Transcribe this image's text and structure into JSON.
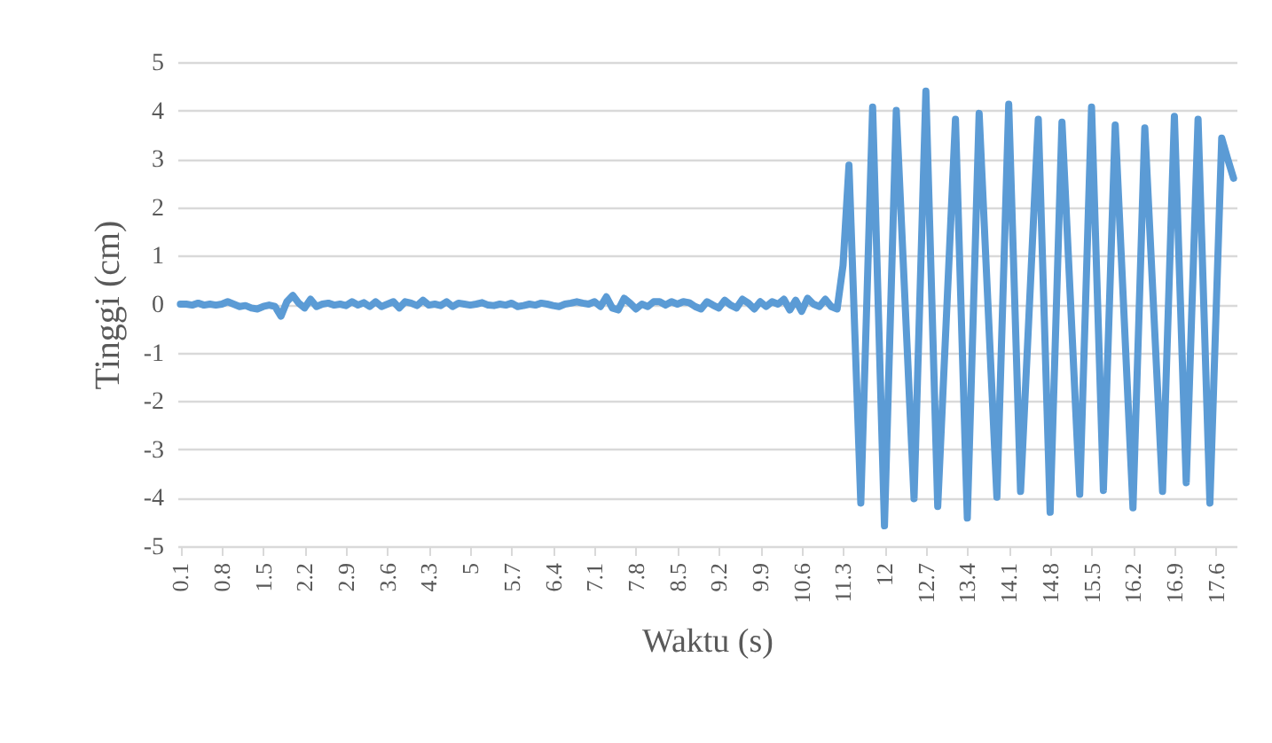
{
  "chart_data": {
    "type": "line",
    "xlabel": "Waktu (s)",
    "ylabel": "Tinggi (cm)",
    "categories": [
      "0.1",
      null,
      null,
      null,
      null,
      null,
      null,
      "0.8",
      null,
      null,
      null,
      null,
      null,
      null,
      "1.5",
      null,
      null,
      null,
      null,
      null,
      null,
      "2.2",
      null,
      null,
      null,
      null,
      null,
      null,
      "2.9",
      null,
      null,
      null,
      null,
      null,
      null,
      "3.6",
      null,
      null,
      null,
      null,
      null,
      null,
      "4.3",
      null,
      null,
      null,
      null,
      null,
      null,
      "5",
      null,
      null,
      null,
      null,
      null,
      null,
      "5.7",
      null,
      null,
      null,
      null,
      null,
      null,
      "6.4",
      null,
      null,
      null,
      null,
      null,
      null,
      "7.1",
      null,
      null,
      null,
      null,
      null,
      null,
      "7.8",
      null,
      null,
      null,
      null,
      null,
      null,
      "8.5",
      null,
      null,
      null,
      null,
      null,
      null,
      "9.2",
      null,
      null,
      null,
      null,
      null,
      null,
      "9.9",
      null,
      null,
      null,
      null,
      null,
      null,
      "10.6",
      null,
      null,
      null,
      null,
      null,
      null,
      "11.3",
      null,
      null,
      null,
      null,
      null,
      null,
      "12",
      null,
      null,
      null,
      null,
      null,
      null,
      "12.7",
      null,
      null,
      null,
      null,
      null,
      null,
      "13.4",
      null,
      null,
      null,
      null,
      null,
      null,
      "14.1",
      null,
      null,
      null,
      null,
      null,
      null,
      "14.8",
      null,
      null,
      null,
      null,
      null,
      null,
      "15.5",
      null,
      null,
      null,
      null,
      null,
      null,
      "16.2",
      null,
      null,
      null,
      null,
      null,
      null,
      "16.9",
      null,
      null,
      null,
      null,
      null,
      null,
      "17.6",
      null,
      null,
      null
    ],
    "series": [
      {
        "color": "#5b9bd5",
        "values": [
          0,
          0,
          -0.02,
          0.02,
          -0.02,
          0,
          -0.02,
          0,
          0.05,
          0,
          -0.05,
          -0.03,
          -0.08,
          -0.1,
          -0.05,
          -0.02,
          -0.05,
          -0.25,
          0.05,
          0.18,
          0.02,
          -0.08,
          0.1,
          -0.05,
          0,
          0.02,
          -0.02,
          0,
          -0.03,
          0.05,
          -0.02,
          0.03,
          -0.05,
          0.05,
          -0.05,
          0,
          0.05,
          -0.08,
          0.05,
          0.02,
          -0.03,
          0.08,
          -0.02,
          0,
          -0.03,
          0.05,
          -0.05,
          0.02,
          0,
          -0.02,
          0,
          0.03,
          -0.02,
          -0.03,
          0,
          -0.02,
          0.02,
          -0.05,
          -0.03,
          0,
          -0.02,
          0.02,
          0,
          -0.03,
          -0.05,
          0,
          0.02,
          0.05,
          0.02,
          0,
          0.05,
          -0.05,
          0.15,
          -0.08,
          -0.12,
          0.12,
          0.02,
          -0.1,
          0,
          -0.05,
          0.05,
          0.05,
          -0.02,
          0.05,
          0,
          0.05,
          0.03,
          -0.05,
          -0.1,
          0.05,
          -0.02,
          -0.08,
          0.08,
          -0.02,
          -0.08,
          0.1,
          0.02,
          -0.1,
          0.05,
          -0.05,
          0.05,
          0,
          0.1,
          -0.12,
          0.08,
          -0.15,
          0.12,
          0,
          -0.05,
          0.1,
          -0.05,
          -0.1,
          0.8,
          2.87,
          -0.62,
          -4.11,
          -0.02,
          4.07,
          -0.26,
          -4.58,
          -0.29,
          4.0,
          1.33,
          -1.35,
          -4.02,
          0.19,
          4.4,
          0.11,
          -4.18,
          -1.51,
          1.15,
          3.82,
          -0.3,
          -4.42,
          -0.24,
          3.94,
          1.29,
          -1.35,
          -3.99,
          0.07,
          4.13,
          0.13,
          -3.87,
          -1.31,
          1.26,
          3.82,
          -0.24,
          -4.3,
          -0.27,
          3.76,
          1.2,
          -1.37,
          -3.93,
          0.07,
          4.07,
          0.11,
          -3.85,
          -0.08,
          3.7,
          1.06,
          -1.58,
          -4.21,
          -0.29,
          3.64,
          1.14,
          -1.37,
          -3.87,
          0,
          3.88,
          0.1,
          -3.69,
          0.07,
          3.82,
          -0.15,
          -4.11,
          -0.34,
          3.43,
          3.0,
          2.6
        ]
      }
    ],
    "ylim": [
      -5,
      5
    ],
    "yticks": [
      -5,
      -4,
      -3,
      -2,
      -1,
      0,
      1,
      2,
      3,
      4,
      5
    ],
    "grid": "y",
    "marker": "none",
    "line_style": "solid"
  }
}
